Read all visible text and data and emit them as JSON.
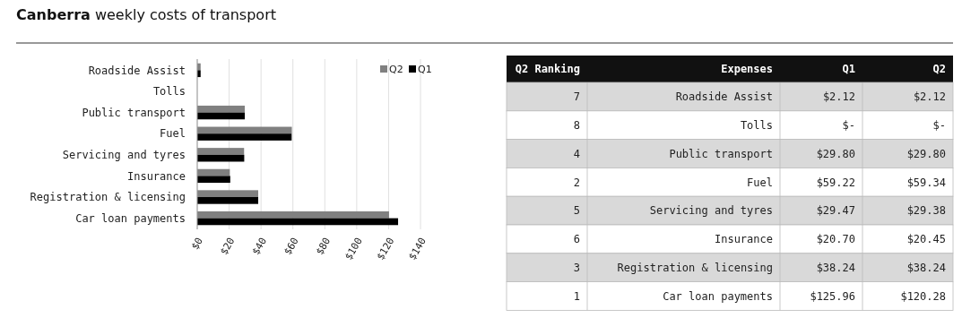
{
  "chart_data": [
    {
      "type": "bar",
      "title": "Canberra weekly costs of transport",
      "orientation": "horizontal",
      "categories": [
        "Roadside Assist",
        "Tolls",
        "Public transport",
        "Fuel",
        "Servicing and tyres",
        "Insurance",
        "Registration & licensing",
        "Car loan payments"
      ],
      "series": [
        {
          "name": "Q2",
          "color": "#808080",
          "values": [
            2.12,
            null,
            29.8,
            59.34,
            29.38,
            20.45,
            38.24,
            120.28
          ],
          "value_labels": [
            "$2.12",
            "$-",
            "$29.80",
            "$59.34",
            "$29.38",
            "$20.45",
            "$38.24",
            "$120.28"
          ]
        },
        {
          "name": "Q1",
          "color": "#000000",
          "values": [
            2.12,
            null,
            29.8,
            59.22,
            29.47,
            20.7,
            38.24,
            125.96
          ],
          "value_labels": [
            "$2.12",
            "$-",
            "$29.80",
            "$59.22",
            "$29.47",
            "$20.70",
            "$38.24",
            "$125.96"
          ]
        }
      ],
      "xlim": [
        0,
        140
      ],
      "xticks": [
        {
          "value": 0,
          "label": "$0"
        },
        {
          "value": 20,
          "label": "$20"
        },
        {
          "value": 40,
          "label": "$40"
        },
        {
          "value": 60,
          "label": "$60"
        },
        {
          "value": 80,
          "label": "$80"
        },
        {
          "value": 100,
          "label": "$100"
        },
        {
          "value": 120,
          "label": "$120"
        },
        {
          "value": 140,
          "label": "$140"
        }
      ],
      "grid": "x",
      "legend": "top right"
    },
    {
      "type": "other",
      "ylabel": "Expenses",
      "categories": [
        "Roadside Assist",
        "Tolls",
        "Public transport",
        "Fuel",
        "Servicing and tyres",
        "Insurance",
        "Registration & licensing",
        "Car loan payments"
      ],
      "series": [
        {
          "name": "Q2 Ranking",
          "colors": [
            "#d9d9d9",
            "#ffffff",
            "#d9d9d9",
            "#ffffff",
            "#d9d9d9",
            "#ffffff",
            "#d9d9d9",
            "#ffffff"
          ],
          "values": [
            7,
            8,
            4,
            2,
            5,
            6,
            3,
            1
          ]
        }
      ],
      "data_labels": true
    }
  ]
}
